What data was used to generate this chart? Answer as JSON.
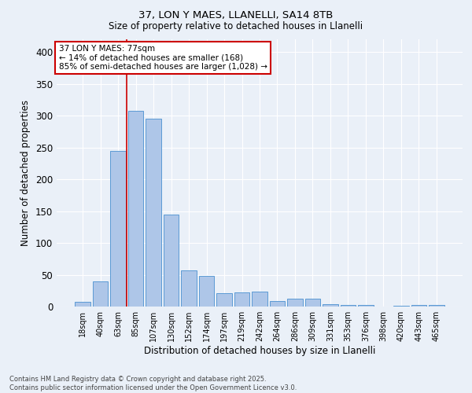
{
  "title1": "37, LON Y MAES, LLANELLI, SA14 8TB",
  "title2": "Size of property relative to detached houses in Llanelli",
  "xlabel": "Distribution of detached houses by size in Llanelli",
  "ylabel": "Number of detached properties",
  "categories": [
    "18sqm",
    "40sqm",
    "63sqm",
    "85sqm",
    "107sqm",
    "130sqm",
    "152sqm",
    "174sqm",
    "197sqm",
    "219sqm",
    "242sqm",
    "264sqm",
    "286sqm",
    "309sqm",
    "331sqm",
    "353sqm",
    "376sqm",
    "398sqm",
    "420sqm",
    "443sqm",
    "465sqm"
  ],
  "values": [
    7,
    39,
    245,
    308,
    295,
    144,
    57,
    48,
    21,
    22,
    23,
    9,
    12,
    12,
    4,
    3,
    2,
    0,
    1,
    2,
    3
  ],
  "bar_color": "#aec6e8",
  "bar_edge_color": "#5b9bd5",
  "bg_color": "#eaf0f8",
  "grid_color": "#ffffff",
  "vline_x": 2.5,
  "vline_color": "#cc0000",
  "annotation_title": "37 LON Y MAES: 77sqm",
  "annotation_line1": "← 14% of detached houses are smaller (168)",
  "annotation_line2": "85% of semi-detached houses are larger (1,028) →",
  "box_color": "#cc0000",
  "ylim": [
    0,
    420
  ],
  "yticks": [
    0,
    50,
    100,
    150,
    200,
    250,
    300,
    350,
    400
  ],
  "footer1": "Contains HM Land Registry data © Crown copyright and database right 2025.",
  "footer2": "Contains public sector information licensed under the Open Government Licence v3.0."
}
